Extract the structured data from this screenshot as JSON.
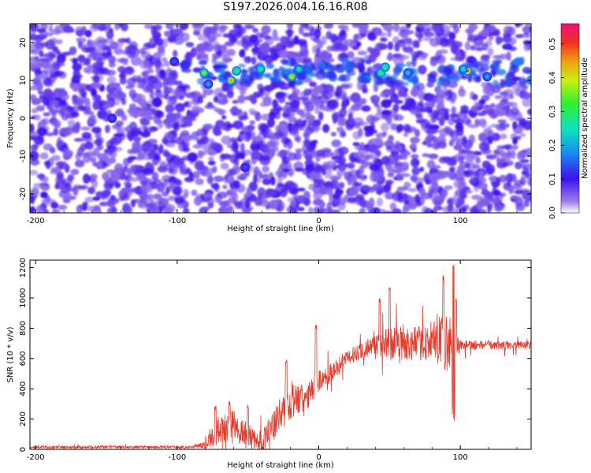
{
  "title": "S197.2026.004.16.16.R08",
  "chart_data": [
    {
      "type": "heatmap",
      "xlabel": "Height of straight line (km)",
      "ylabel": "Frequency (Hz)",
      "xlim": [
        -204,
        150
      ],
      "ylim": [
        -25,
        25
      ],
      "xticks": [
        -200,
        -100,
        0,
        100
      ],
      "yticks": [
        -20,
        -10,
        0,
        10,
        20
      ],
      "xtick_labels": [
        "-200",
        "-100",
        "0",
        "100"
      ],
      "ytick_labels": [
        "-20",
        "-10",
        "0",
        "10",
        "20"
      ],
      "colorbar": {
        "label": "Normalized spectral amplitude",
        "range": [
          0,
          0.56
        ],
        "ticks": [
          0,
          0.1,
          0.2,
          0.3,
          0.4,
          0.5
        ],
        "tick_labels": [
          "0.0",
          "0.1",
          "0.2",
          "0.3",
          "0.4",
          "0.5"
        ]
      },
      "signal_band_hz": [
        9,
        15
      ],
      "hotspots": [
        {
          "x": -81,
          "y": 12,
          "amp": 0.36
        },
        {
          "x": -78,
          "y": 9,
          "amp": 0.2
        },
        {
          "x": -62,
          "y": 10,
          "amp": 0.45
        },
        {
          "x": -58,
          "y": 12.5,
          "amp": 0.3
        },
        {
          "x": -41,
          "y": 13,
          "amp": 0.28
        },
        {
          "x": -19,
          "y": 11,
          "amp": 0.42
        },
        {
          "x": -14,
          "y": 13,
          "amp": 0.25
        },
        {
          "x": 44,
          "y": 12,
          "amp": 0.32
        },
        {
          "x": 47,
          "y": 13.5,
          "amp": 0.3
        },
        {
          "x": 63,
          "y": 12,
          "amp": 0.22
        },
        {
          "x": 105,
          "y": 12.5,
          "amp": 0.5
        },
        {
          "x": 102,
          "y": 13,
          "amp": 0.25
        },
        {
          "x": 119,
          "y": 11,
          "amp": 0.2
        },
        {
          "x": -102,
          "y": 15,
          "amp": 0.15
        },
        {
          "x": -146,
          "y": 0,
          "amp": 0.15
        },
        {
          "x": -52,
          "y": -13,
          "amp": 0.15
        }
      ]
    },
    {
      "type": "line",
      "xlabel": "Height of straight line (km)",
      "ylabel": "SNR (10 * v/v)",
      "xlim": [
        -204,
        150
      ],
      "ylim": [
        0,
        1250
      ],
      "xticks": [
        -200,
        -100,
        0,
        100
      ],
      "yticks": [
        0,
        200,
        400,
        600,
        800,
        1000,
        1200
      ],
      "xtick_labels": [
        "-200",
        "-100",
        "0",
        "100"
      ],
      "ytick_labels": [
        "0",
        "200",
        "400",
        "600",
        "800",
        "1000",
        "1200"
      ],
      "color": "#e8392a",
      "baseline": [
        [
          -204,
          15
        ],
        [
          -90,
          15
        ],
        [
          -80,
          30
        ],
        [
          -72,
          120
        ],
        [
          -60,
          160
        ],
        [
          -50,
          80
        ],
        [
          -40,
          40
        ],
        [
          -30,
          180
        ],
        [
          -20,
          340
        ],
        [
          -10,
          320
        ],
        [
          0,
          450
        ],
        [
          10,
          520
        ],
        [
          20,
          600
        ],
        [
          30,
          660
        ],
        [
          40,
          690
        ],
        [
          50,
          700
        ],
        [
          60,
          700
        ],
        [
          70,
          700
        ],
        [
          80,
          710
        ],
        [
          90,
          700
        ],
        [
          100,
          690
        ],
        [
          110,
          690
        ],
        [
          120,
          690
        ],
        [
          130,
          685
        ],
        [
          150,
          690
        ]
      ],
      "noise": [
        [
          -204,
          14
        ],
        [
          -90,
          14
        ],
        [
          -80,
          40
        ],
        [
          -72,
          150
        ],
        [
          -60,
          170
        ],
        [
          -45,
          140
        ],
        [
          -30,
          180
        ],
        [
          -20,
          230
        ],
        [
          -10,
          160
        ],
        [
          0,
          120
        ],
        [
          20,
          80
        ],
        [
          40,
          110
        ],
        [
          50,
          200
        ],
        [
          70,
          180
        ],
        [
          85,
          260
        ],
        [
          95,
          380
        ],
        [
          100,
          60
        ],
        [
          150,
          40
        ]
      ],
      "peaks": [
        [
          -73,
          290
        ],
        [
          -63,
          320
        ],
        [
          -50,
          300
        ],
        [
          -23,
          600
        ],
        [
          -2,
          820
        ],
        [
          43,
          1000
        ],
        [
          50,
          1090
        ],
        [
          88,
          1150
        ],
        [
          95,
          1230
        ],
        [
          97,
          1000
        ]
      ]
    }
  ]
}
